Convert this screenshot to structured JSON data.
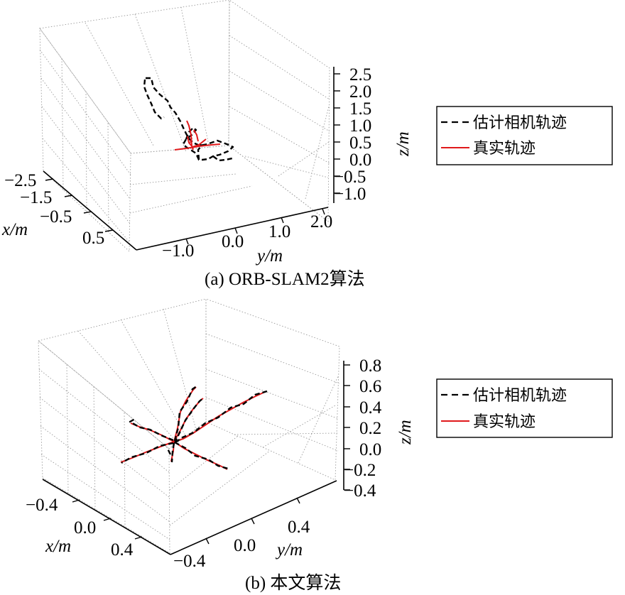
{
  "chart_data": [
    {
      "type": "line",
      "projection": "3d",
      "caption": "(a) ORB-SLAM2算法",
      "xlabel": "x/m",
      "ylabel": "y/m",
      "zlabel": "z/m",
      "x_ticks": [
        "−2.5",
        "−1.5",
        "−0.5",
        "0.5"
      ],
      "y_ticks": [
        "−1.0",
        "0.0",
        "1.0",
        "2.0"
      ],
      "z_ticks": [
        "2.5",
        "2.0",
        "1.5",
        "1.0",
        "0.5",
        "0.0",
        "−0.5",
        "−1.0"
      ],
      "legend": {
        "position": "right",
        "entries": [
          {
            "label": "估计相机轨迹",
            "color": "#000000",
            "style": "dashed"
          },
          {
            "label": "真实轨迹",
            "color": "#e0191b",
            "style": "solid"
          }
        ]
      },
      "series": [
        {
          "name": "估计相机轨迹",
          "color": "#000000"
        },
        {
          "name": "真实轨迹",
          "color": "#e0191b"
        }
      ]
    },
    {
      "type": "line",
      "projection": "3d",
      "caption": "(b) 本文算法",
      "xlabel": "x/m",
      "ylabel": "y/m",
      "zlabel": "z/m",
      "x_ticks": [
        "−0.4",
        "0.0",
        "0.4"
      ],
      "y_ticks": [
        "−0.4",
        "0.0",
        "0.4"
      ],
      "z_ticks": [
        "0.8",
        "0.6",
        "0.4",
        "0.2",
        "0.0",
        "−0.2",
        "−0.4"
      ],
      "legend": {
        "position": "right",
        "entries": [
          {
            "label": "估计相机轨迹",
            "color": "#000000",
            "style": "dashed"
          },
          {
            "label": "真实轨迹",
            "color": "#e0191b",
            "style": "solid"
          }
        ]
      },
      "series": [
        {
          "name": "估计相机轨迹",
          "color": "#000000"
        },
        {
          "name": "真实轨迹",
          "color": "#e0191b"
        }
      ]
    }
  ]
}
